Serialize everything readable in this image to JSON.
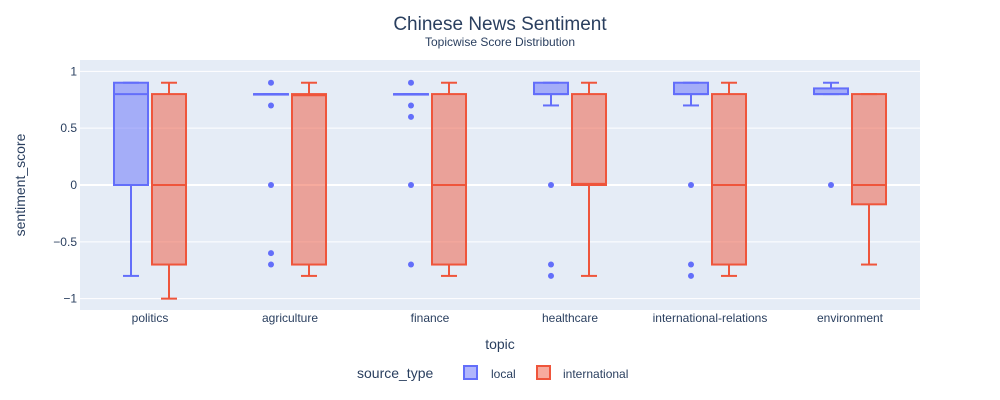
{
  "chart_data": {
    "type": "box",
    "title": "Chinese News Sentiment",
    "subtitle": "Topicwise Score Distribution",
    "xlabel": "topic",
    "ylabel": "sentiment_score",
    "ylim": [
      -1.1,
      1.1
    ],
    "yticks": [
      1,
      0.5,
      0,
      -0.5,
      -1
    ],
    "ytick_labels": [
      "1",
      "0.5",
      "0",
      "−0.5",
      "−1"
    ],
    "categories": [
      "politics",
      "agriculture",
      "finance",
      "healthcare",
      "international-relations",
      "environment"
    ],
    "legend": {
      "title": "source_type",
      "position": "bottom-center"
    },
    "grid": true,
    "series": [
      {
        "name": "local",
        "color": "#636efa",
        "fill": "rgba(99,110,250,0.5)",
        "boxes": [
          {
            "lowerfence": -0.8,
            "q1": 0.0,
            "median": 0.8,
            "q3": 0.9,
            "upperfence": 0.9,
            "outliers": []
          },
          {
            "lowerfence": 0.8,
            "q1": 0.8,
            "median": 0.8,
            "q3": 0.8,
            "upperfence": 0.8,
            "outliers": [
              0.9,
              0.7,
              0.0,
              -0.6,
              -0.7
            ]
          },
          {
            "lowerfence": 0.8,
            "q1": 0.8,
            "median": 0.8,
            "q3": 0.8,
            "upperfence": 0.8,
            "outliers": [
              0.9,
              0.7,
              0.6,
              0.0,
              -0.7
            ]
          },
          {
            "lowerfence": 0.7,
            "q1": 0.8,
            "median": 0.8,
            "q3": 0.9,
            "upperfence": 0.9,
            "outliers": [
              0.0,
              -0.7,
              -0.8
            ]
          },
          {
            "lowerfence": 0.7,
            "q1": 0.8,
            "median": 0.8,
            "q3": 0.9,
            "upperfence": 0.9,
            "outliers": [
              0.0,
              -0.7,
              -0.8
            ]
          },
          {
            "lowerfence": 0.8,
            "q1": 0.8,
            "median": 0.8,
            "q3": 0.85,
            "upperfence": 0.9,
            "outliers": [
              0.0
            ]
          }
        ]
      },
      {
        "name": "international",
        "color": "#ef553b",
        "fill": "rgba(239,85,59,0.5)",
        "boxes": [
          {
            "lowerfence": -1.0,
            "q1": -0.7,
            "median": 0.0,
            "q3": 0.8,
            "upperfence": 0.9,
            "outliers": []
          },
          {
            "lowerfence": -0.8,
            "q1": -0.7,
            "median": 0.79,
            "q3": 0.8,
            "upperfence": 0.9,
            "outliers": []
          },
          {
            "lowerfence": -0.8,
            "q1": -0.7,
            "median": 0.0,
            "q3": 0.8,
            "upperfence": 0.9,
            "outliers": []
          },
          {
            "lowerfence": -0.8,
            "q1": 0.0,
            "median": 0.01,
            "q3": 0.8,
            "upperfence": 0.9,
            "outliers": []
          },
          {
            "lowerfence": -0.8,
            "q1": -0.7,
            "median": 0.0,
            "q3": 0.8,
            "upperfence": 0.9,
            "outliers": []
          },
          {
            "lowerfence": -0.7,
            "q1": -0.17,
            "median": 0.0,
            "q3": 0.8,
            "upperfence": 0.8,
            "outliers": []
          }
        ]
      }
    ]
  }
}
